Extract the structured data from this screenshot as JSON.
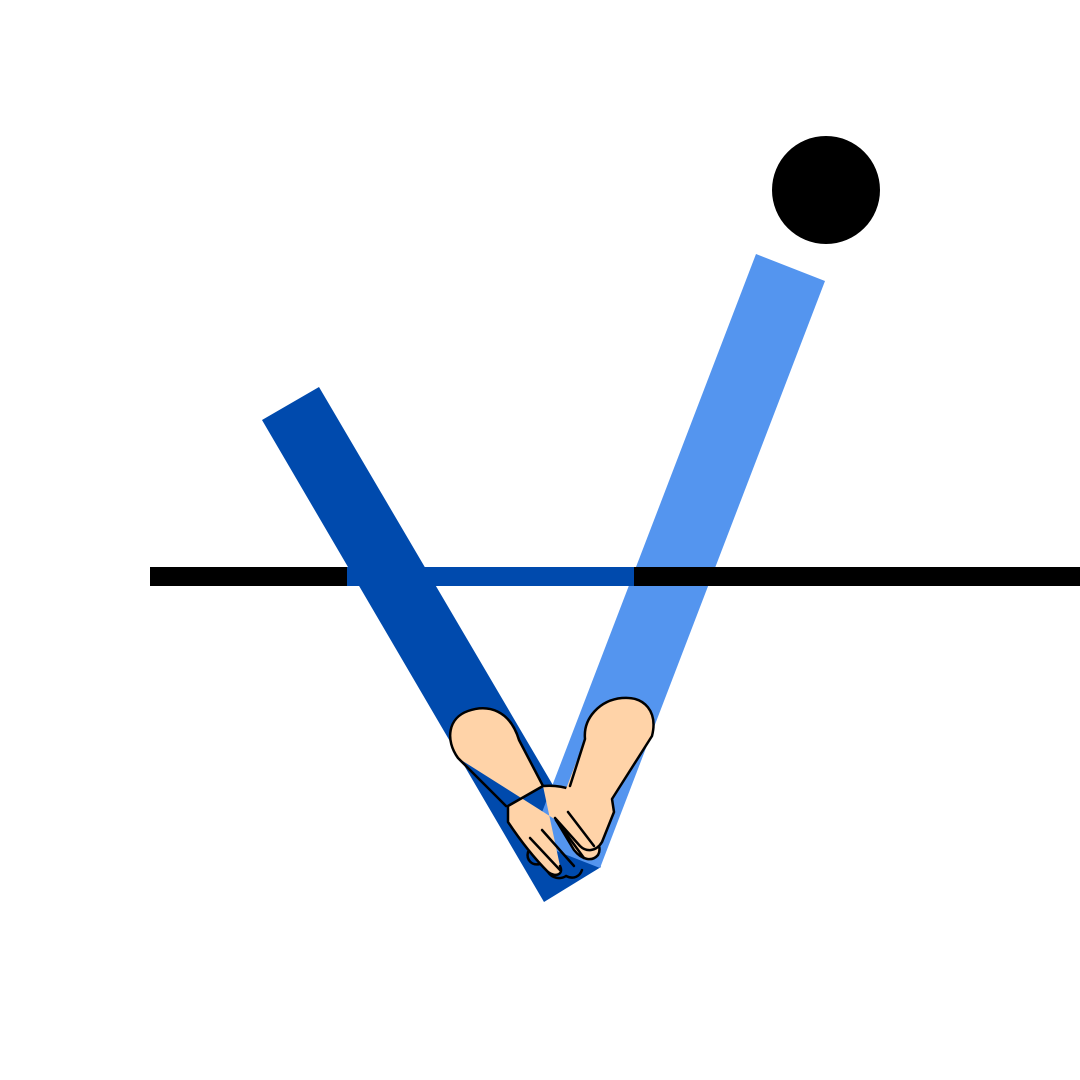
{
  "figure": {
    "background": "#ffffff",
    "line_color": "#000000",
    "dot_color": "#000000",
    "left_arm_color": "#004AAD",
    "right_arm_color": "#5495EF",
    "skin_color": "#FFD3A8",
    "outline_color": "#000000",
    "icons": [
      "horizon-line",
      "head-dot",
      "left-arm",
      "right-arm",
      "clasped-hands"
    ]
  }
}
